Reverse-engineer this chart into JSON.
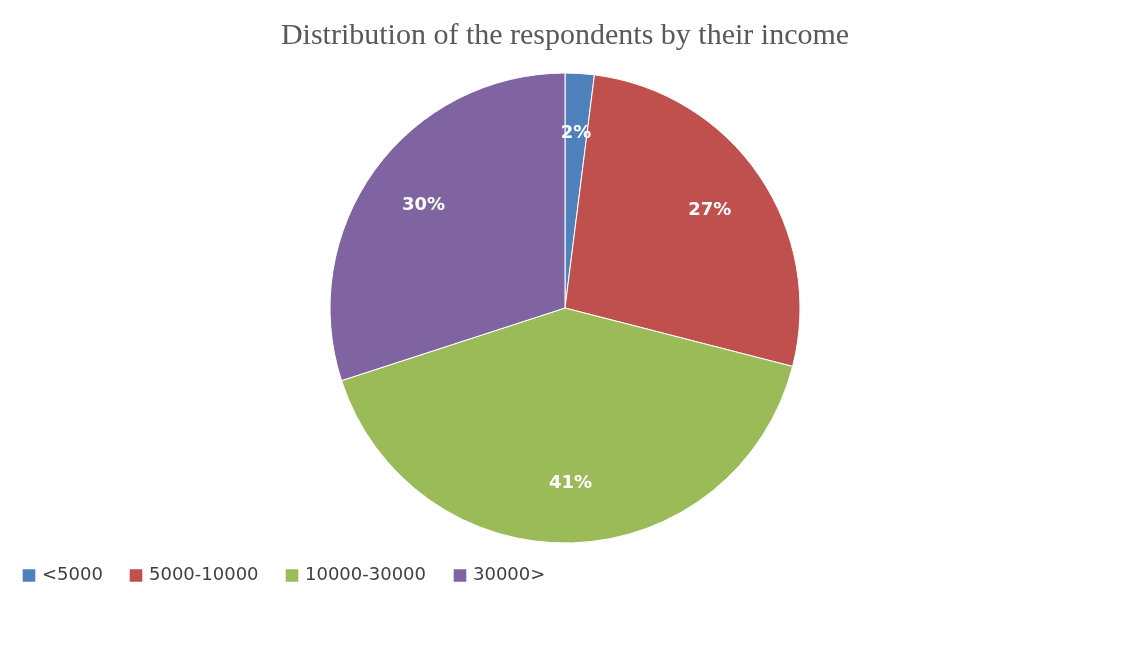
{
  "chart_data": {
    "type": "pie",
    "title": "Distribution of the respondents by their income",
    "categories": [
      "<5000",
      "5000-10000",
      "10000-30000",
      "30000>"
    ],
    "values": [
      2,
      27,
      41,
      30
    ],
    "value_labels": [
      "2%",
      "27%",
      "41%",
      "30%"
    ],
    "colors": [
      "#4f81bd",
      "#c0504d",
      "#9bbb59",
      "#8064a2"
    ],
    "legend": "bottom"
  }
}
